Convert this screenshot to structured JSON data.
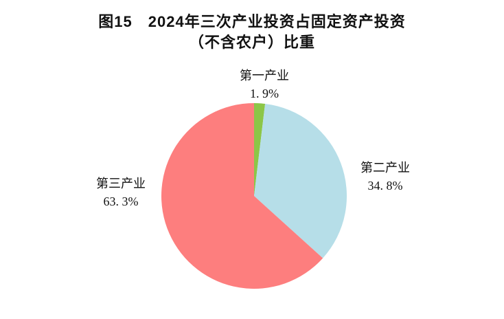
{
  "title": {
    "line1": "图15　2024年三次产业投资占固定资产投资",
    "line2": "（不含农户）比重"
  },
  "chart_data": {
    "type": "pie",
    "title": "图15 2024年三次产业投资占固定资产投资（不含农户）比重",
    "start_angle_deg": -90,
    "direction": "clockwise",
    "legend_position": "none",
    "labels_outside": true,
    "background_color": "#ffffff",
    "series": [
      {
        "name": "第一产业",
        "value": 1.9,
        "label": "1. 9%",
        "color": "#8CC647"
      },
      {
        "name": "第二产业",
        "value": 34.8,
        "label": "34. 8%",
        "color": "#B6DEE8"
      },
      {
        "name": "第三产业",
        "value": 63.3,
        "label": "63. 3%",
        "color": "#FD7E7E"
      }
    ]
  }
}
